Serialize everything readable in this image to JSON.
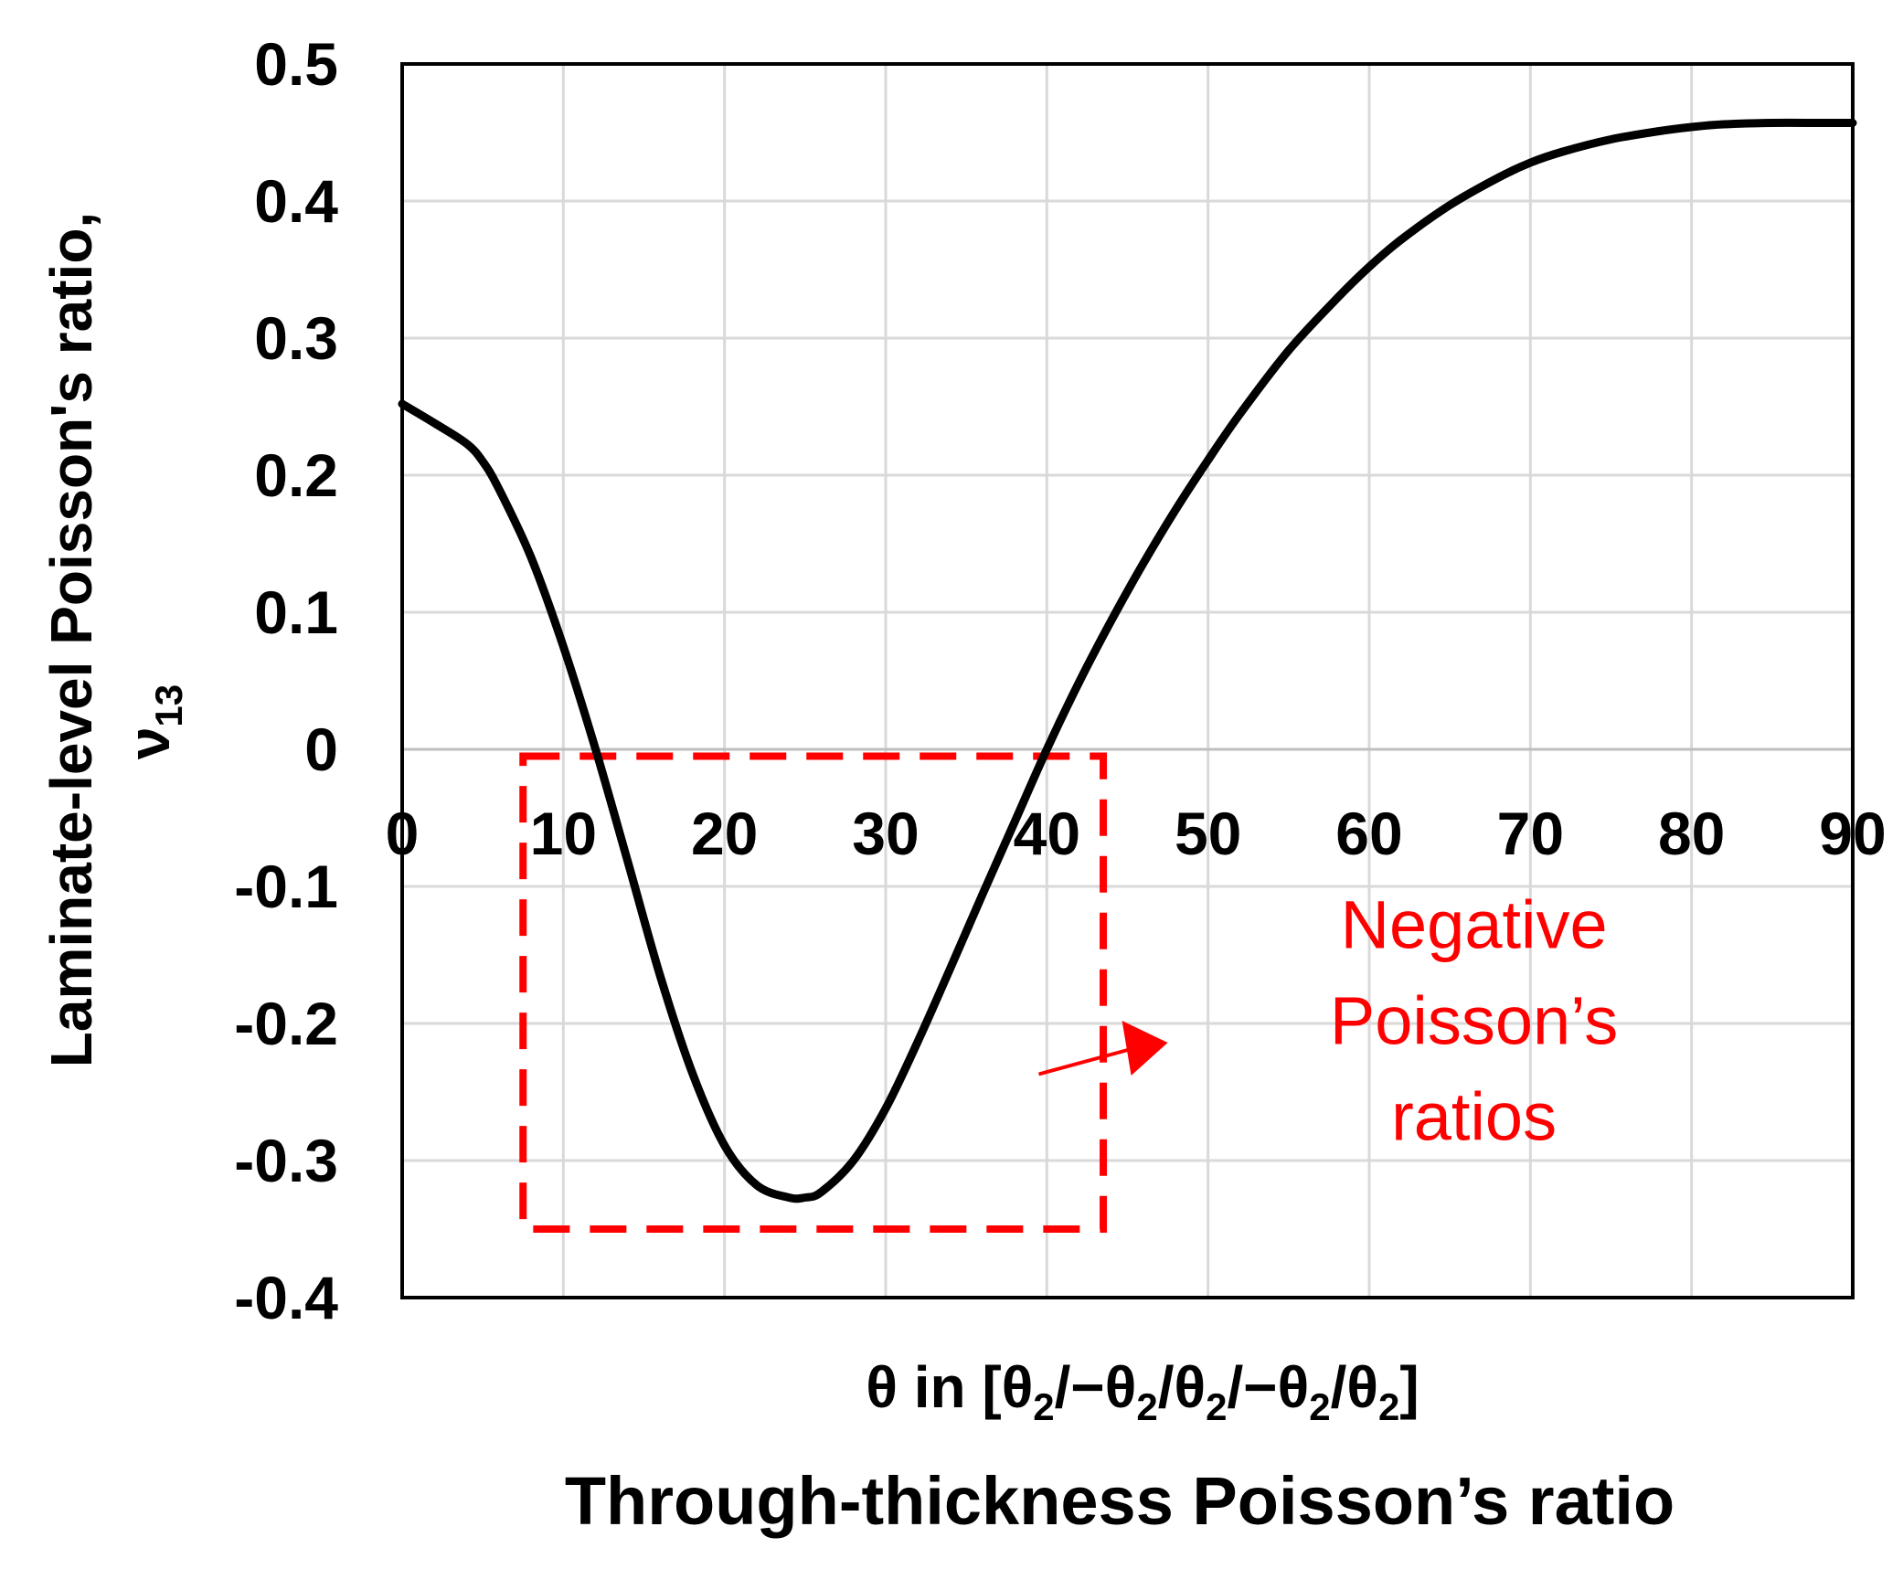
{
  "chart_data": {
    "type": "line",
    "caption": "Through-thickness Poisson’s ratio",
    "xlabel": {
      "prefix": "θ in [θ",
      "sub": "2",
      "separators": [
        "/−θ",
        "/θ",
        "/−θ",
        "/θ"
      ],
      "suffix": "]"
    },
    "ylabel": {
      "text": "Laminate-level Poisson's ratio,",
      "symbol": "ν",
      "sub": "13"
    },
    "xlim": [
      0,
      90
    ],
    "ylim": [
      -0.4,
      0.5
    ],
    "x_ticks": [
      "0",
      "10",
      "20",
      "30",
      "40",
      "50",
      "60",
      "70",
      "80",
      "90"
    ],
    "y_ticks": [
      "0.5",
      "0.4",
      "0.3",
      "0.2",
      "0.1",
      "0",
      "-0.1",
      "-0.2",
      "-0.3",
      "-0.4"
    ],
    "grid": true,
    "series": [
      {
        "name": "nu13",
        "color": "#000000",
        "x": [
          0,
          2,
          4,
          5,
          6,
          8,
          10,
          12,
          14,
          16,
          18,
          20,
          22,
          24,
          25,
          26,
          28,
          30,
          32,
          34,
          36,
          38,
          40,
          42,
          44,
          46,
          48,
          50,
          52,
          55,
          58,
          60,
          62,
          65,
          68,
          70,
          72,
          75,
          78,
          80,
          82,
          85,
          88,
          90
        ],
        "y": [
          0.252,
          0.238,
          0.223,
          0.21,
          0.19,
          0.14,
          0.075,
          0.0,
          -0.082,
          -0.165,
          -0.236,
          -0.289,
          -0.318,
          -0.327,
          -0.327,
          -0.323,
          -0.3,
          -0.262,
          -0.213,
          -0.16,
          -0.106,
          -0.053,
          0.0,
          0.049,
          0.094,
          0.136,
          0.175,
          0.211,
          0.245,
          0.291,
          0.329,
          0.352,
          0.372,
          0.397,
          0.417,
          0.428,
          0.436,
          0.445,
          0.451,
          0.454,
          0.456,
          0.457,
          0.457,
          0.457
        ]
      }
    ],
    "annotation": {
      "lines": [
        "Negative",
        "Poisson’s",
        "ratios"
      ],
      "color": "#ff0000",
      "box_x": [
        7.5,
        43.5
      ],
      "box_y": [
        -0.35,
        -0.005
      ]
    }
  }
}
